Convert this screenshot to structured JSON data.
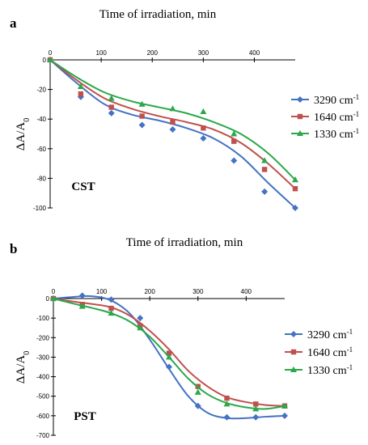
{
  "chart_data": [
    {
      "type": "line",
      "panel": "a",
      "xlabel": "Time of irradiation, min",
      "ylabel": "ΔA/A",
      "ylabel_sub": "0",
      "annotation": "CST",
      "xlim": [
        0,
        480
      ],
      "ylim": [
        -100,
        0
      ],
      "xticks": [
        0,
        100,
        200,
        300,
        400
      ],
      "yticks": [
        0,
        -20,
        -40,
        -60,
        -80,
        -100
      ],
      "legend_position": "right",
      "grid": false,
      "series": [
        {
          "name": "3290 cm",
          "sup": "-1",
          "color": "#4472c4",
          "marker": "diamond",
          "x": [
            0,
            60,
            120,
            180,
            240,
            300,
            360,
            420,
            480
          ],
          "y": [
            0,
            -25,
            -36,
            -44,
            -47,
            -53,
            -68,
            -89,
            -100
          ],
          "fit": [
            0,
            -16,
            -30,
            -37,
            -41,
            -46,
            -53,
            -65,
            -83,
            -100
          ]
        },
        {
          "name": "1640 cm",
          "sup": "-1",
          "color": "#c0504d",
          "marker": "square",
          "x": [
            0,
            60,
            120,
            180,
            240,
            300,
            360,
            420,
            480
          ],
          "y": [
            0,
            -23,
            -32,
            -38,
            -42,
            -46,
            -55,
            -74,
            -87
          ],
          "fit": [
            0,
            -14,
            -26,
            -33,
            -38,
            -42,
            -47,
            -56,
            -70,
            -87
          ]
        },
        {
          "name": "1330 cm",
          "sup": "-1",
          "color": "#2aa84a",
          "marker": "triangle",
          "x": [
            0,
            60,
            120,
            180,
            240,
            300,
            360,
            420,
            480
          ],
          "y": [
            0,
            -18,
            -26,
            -30,
            -33,
            -35,
            -50,
            -68,
            -81
          ],
          "fit": [
            0,
            -12,
            -22,
            -28,
            -32,
            -36,
            -42,
            -50,
            -63,
            -81
          ]
        }
      ]
    },
    {
      "type": "line",
      "panel": "b",
      "xlabel": "Time of irradiation, min",
      "ylabel": "ΔA/A",
      "ylabel_sub": "0",
      "annotation": "PST",
      "xlim": [
        0,
        480
      ],
      "ylim": [
        -700,
        0
      ],
      "xticks": [
        0,
        100,
        200,
        300,
        400
      ],
      "yticks": [
        0,
        -100,
        -200,
        -300,
        -400,
        -500,
        -600,
        -700
      ],
      "legend_position": "right",
      "grid": false,
      "series": [
        {
          "name": "3290 cm",
          "sup": "-1",
          "color": "#4472c4",
          "marker": "diamond",
          "x": [
            0,
            60,
            120,
            180,
            240,
            300,
            360,
            420,
            480
          ],
          "y": [
            0,
            15,
            -5,
            -100,
            -350,
            -550,
            -608,
            -608,
            -600
          ],
          "fit": [
            0,
            8,
            12,
            -10,
            -80,
            -210,
            -360,
            -500,
            -585,
            -612,
            -612,
            -605,
            -600
          ]
        },
        {
          "name": "1640 cm",
          "sup": "-1",
          "color": "#c0504d",
          "marker": "square",
          "x": [
            0,
            60,
            120,
            180,
            240,
            300,
            360,
            420,
            480
          ],
          "y": [
            0,
            -30,
            -50,
            -140,
            -280,
            -450,
            -510,
            -540,
            -550
          ],
          "fit": [
            0,
            -15,
            -28,
            -45,
            -90,
            -165,
            -260,
            -370,
            -450,
            -505,
            -530,
            -545,
            -550
          ]
        },
        {
          "name": "1330 cm",
          "sup": "-1",
          "color": "#2aa84a",
          "marker": "triangle",
          "x": [
            0,
            60,
            120,
            180,
            240,
            300,
            360,
            420,
            480
          ],
          "y": [
            0,
            -40,
            -75,
            -150,
            -300,
            -480,
            -540,
            -565,
            -550
          ],
          "fit": [
            0,
            -25,
            -48,
            -75,
            -120,
            -195,
            -300,
            -410,
            -490,
            -535,
            -557,
            -565,
            -550
          ]
        }
      ]
    }
  ]
}
